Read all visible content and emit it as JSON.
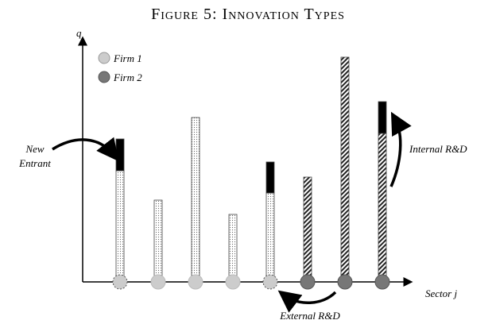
{
  "title": "Figure 5: Innovation Types",
  "axes": {
    "y": "q",
    "x": "Sector j"
  },
  "legend": [
    "Firm 1",
    "Firm 2"
  ],
  "annotations": {
    "new_entrant": [
      "New",
      "Entrant"
    ],
    "internal": "Internal R&D",
    "external": "External R&D"
  }
}
